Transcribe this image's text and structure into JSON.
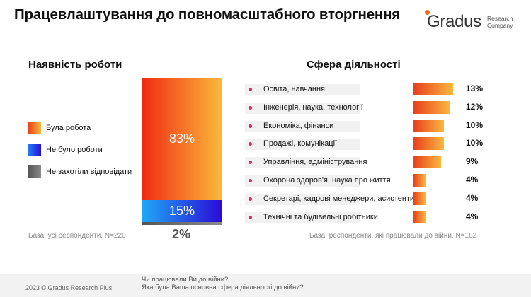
{
  "title": "Працевлаштування до повномасштабного вторгнення",
  "logo": {
    "word": "Gradus",
    "sub1": "Research",
    "sub2": "Company",
    "accent": "#f26b1d"
  },
  "left": {
    "heading": "Наявність роботи",
    "legend": [
      {
        "label": "Була робота",
        "color": "orange-gradient"
      },
      {
        "label": "Не було роботи",
        "color": "blue-gradient"
      },
      {
        "label": "Не захотіли відповідати",
        "color": "#6e6e6e"
      }
    ],
    "base": "База: усі респонденти, N=220"
  },
  "right": {
    "heading": "Сфера діяльності",
    "base": "База: респонденти, які працювали до війни, N=182"
  },
  "chart_data": [
    {
      "type": "bar",
      "categories": [
        "Була робота",
        "Не було роботи",
        "Не захотіли відповідати"
      ],
      "values": [
        83,
        15,
        2
      ],
      "labels": [
        "83%",
        "15%",
        "2%"
      ]
    },
    {
      "type": "bar",
      "categories": [
        "Освіта, навчання",
        "Інженерія, наука, технології",
        "Економіка, фінанси",
        "Продажі, комунікації",
        "Управління, адміністрування",
        "Охорона здоров'я, наука про життя",
        "Секретарі, кадрові менеджери, асистенти",
        "Технічні та будівельні робітники"
      ],
      "values": [
        13,
        12,
        10,
        10,
        9,
        4,
        4,
        4
      ],
      "labels": [
        "13%",
        "12%",
        "10%",
        "10%",
        "9%",
        "4%",
        "4%",
        "4%"
      ]
    }
  ],
  "footer": {
    "copyright": "2023 © Gradus Research Plus",
    "q1": "Чи працювали Ви до війни?",
    "q2": "Яка була Ваша основна сфера діяльності до війни?"
  }
}
